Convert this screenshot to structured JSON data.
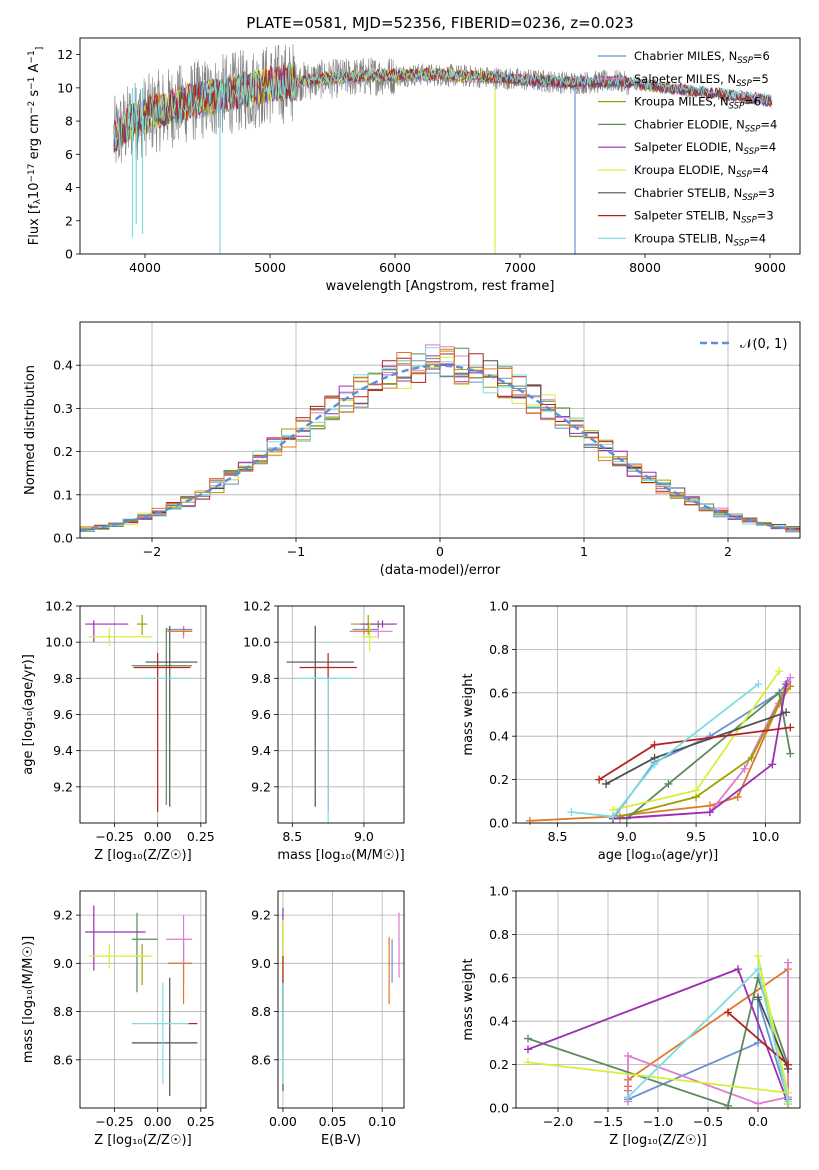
{
  "figure": {
    "title": "PLATE=0581, MJD=52356, FIBERID=0236, z=0.023",
    "models": [
      {
        "name": "Chabrier MILES, N",
        "sub": "SSP",
        "nssp": "=6",
        "color": "#6b8fd4"
      },
      {
        "name": "Salpeter MILES, N",
        "sub": "SSP",
        "nssp": "=5",
        "color": "#e07ad0"
      },
      {
        "name": "Kroupa MILES, N",
        "sub": "SSP",
        "nssp": "=6",
        "color": "#a0a000"
      },
      {
        "name": "Chabrier ELODIE, N",
        "sub": "SSP",
        "nssp": "=4",
        "color": "#5d8a5d"
      },
      {
        "name": "Salpeter ELODIE, N",
        "sub": "SSP",
        "nssp": "=4",
        "color": "#9b30b0"
      },
      {
        "name": "Kroupa ELODIE, N",
        "sub": "SSP",
        "nssp": "=4",
        "color": "#d9ee3a"
      },
      {
        "name": "Chabrier STELIB, N",
        "sub": "SSP",
        "nssp": "=3",
        "color": "#505050"
      },
      {
        "name": "Salpeter STELIB, N",
        "sub": "SSP",
        "nssp": "=3",
        "color": "#b22222"
      },
      {
        "name": "Kroupa STELIB, N",
        "sub": "SSP",
        "nssp": "=4",
        "color": "#7ddde0"
      }
    ],
    "extra_colors": {
      "orange": "#e0782a"
    }
  },
  "chart_data": [
    {
      "id": "spectrum",
      "type": "line",
      "xlabel": "wavelength [Angstrom, rest frame]",
      "ylabel_parts": [
        "Flux [f",
        "λ",
        "10",
        "−17",
        " erg cm",
        "−2",
        " s",
        "−1",
        " A",
        "−1",
        "]"
      ],
      "xlim": [
        3480,
        9240
      ],
      "ylim": [
        0,
        13
      ],
      "xticks": [
        4000,
        5000,
        6000,
        7000,
        8000,
        9000
      ],
      "yticks": [
        0,
        2,
        4,
        6,
        8,
        10,
        12
      ],
      "continuum": [
        [
          3750,
          7.0
        ],
        [
          3900,
          8.0
        ],
        [
          4100,
          8.6
        ],
        [
          4400,
          9.2
        ],
        [
          4700,
          9.7
        ],
        [
          5000,
          10.2
        ],
        [
          5400,
          10.5
        ],
        [
          5800,
          10.7
        ],
        [
          6200,
          10.8
        ],
        [
          6600,
          10.7
        ],
        [
          7000,
          10.5
        ],
        [
          7400,
          10.3
        ],
        [
          7800,
          10.4
        ],
        [
          7880,
          10.2
        ]
      ],
      "data_range": [
        3750,
        7870
      ],
      "model_range": [
        3750,
        9020
      ],
      "drops": [
        [
          4600,
          0
        ],
        [
          6800,
          0
        ],
        [
          7440,
          0
        ],
        [
          3900,
          1.0
        ],
        [
          3980,
          1.2
        ],
        [
          3930,
          1.8
        ]
      ]
    },
    {
      "id": "residuals",
      "type": "histogram",
      "xlabel": "(data-model)/error",
      "ylabel": "Normed distribution",
      "xlim": [
        -2.5,
        2.5
      ],
      "ylim": [
        0,
        0.5
      ],
      "xticks": [
        -2,
        -1,
        0,
        1,
        2
      ],
      "yticks": [
        0.0,
        0.1,
        0.2,
        0.3,
        0.4
      ],
      "bin_width": 0.1,
      "legend": "𝒩(0, 1)",
      "curve_color": "#5b8fd6"
    },
    {
      "id": "age_vs_Z",
      "type": "errorbar",
      "xlabel": "Z [log₁₀(Z/Z☉)]",
      "ylabel": "age  [log₁₀(age/yr)]",
      "xlim": [
        -0.45,
        0.28
      ],
      "ylim": [
        9.0,
        10.2
      ],
      "xticks": [
        -0.25,
        0.0,
        0.25
      ],
      "yticks": [
        9.2,
        9.4,
        9.6,
        9.8,
        10.0,
        10.2
      ],
      "points": [
        {
          "m": 0,
          "x": 0.15,
          "y": 10.07,
          "xe": [
            0.1,
            0.05
          ],
          "ye": [
            0.02,
            0.02
          ]
        },
        {
          "m": 1,
          "x": 0.15,
          "y": 10.06,
          "xe": [
            0.1,
            0.05
          ],
          "ye": [
            0.04,
            0.03
          ]
        },
        {
          "m": 2,
          "x": -0.09,
          "y": 10.1,
          "xe": [
            0.03,
            0.03
          ],
          "ye": [
            0.06,
            0.05
          ]
        },
        {
          "m": 3,
          "x": 0.05,
          "y": 9.87,
          "xe": [
            0.2,
            0.15
          ],
          "ye": [
            0.77,
            0.21
          ]
        },
        {
          "m": 4,
          "x": -0.37,
          "y": 10.1,
          "xe": [
            0.05,
            0.2
          ],
          "ye": [
            0.1,
            0.02
          ]
        },
        {
          "m": 5,
          "x": -0.28,
          "y": 10.03,
          "xe": [
            0.12,
            0.25
          ],
          "ye": [
            0.05,
            0.05
          ]
        },
        {
          "m": 6,
          "x": 0.07,
          "y": 9.89,
          "xe": [
            0.14,
            0.16
          ],
          "ye": [
            0.8,
            0.2
          ]
        },
        {
          "m": 7,
          "x": 0.0,
          "y": 9.86,
          "xe": [
            0.14,
            0.19
          ],
          "ye": [
            0.8,
            0.08
          ]
        },
        {
          "m": 8,
          "x": 0.03,
          "y": 9.8,
          "xe": [
            0.1,
            0.15
          ],
          "ye": [
            0.0,
            0.0
          ]
        },
        {
          "m": 9,
          "x": 0.15,
          "y": 10.06,
          "xe": [
            0.09,
            0.05
          ],
          "ye": [
            0.02,
            0.02
          ]
        }
      ]
    },
    {
      "id": "age_vs_mass",
      "type": "errorbar",
      "xlabel": "mass [log₁₀(M/M☉)]",
      "ylabel": "",
      "xlim": [
        8.4,
        9.28
      ],
      "ylim": [
        9.0,
        10.2
      ],
      "xticks": [
        8.5,
        9.0
      ],
      "yticks": [
        9.2,
        9.4,
        9.6,
        9.8,
        10.0,
        10.2
      ],
      "points": [
        {
          "m": 0,
          "x": 9.0,
          "y": 10.07,
          "xe": [
            0.08,
            0.1
          ],
          "ye": [
            0.02,
            0.02
          ]
        },
        {
          "m": 1,
          "x": 9.1,
          "y": 10.06,
          "xe": [
            0.1,
            0.1
          ],
          "ye": [
            0.04,
            0.03
          ]
        },
        {
          "m": 2,
          "x": 9.03,
          "y": 10.1,
          "xe": [
            0.12,
            0.05
          ],
          "ye": [
            0.06,
            0.05
          ]
        },
        {
          "m": 3,
          "x": 9.1,
          "y": 10.1,
          "xe": [
            0.1,
            0.1
          ],
          "ye": [
            0.02,
            0.02
          ]
        },
        {
          "m": 4,
          "x": 9.13,
          "y": 10.1,
          "xe": [
            0.15,
            0.1
          ],
          "ye": [
            0.02,
            0.02
          ]
        },
        {
          "m": 5,
          "x": 9.04,
          "y": 10.03,
          "xe": [
            0.05,
            0.05
          ],
          "ye": [
            0.08,
            0.08
          ]
        },
        {
          "m": 6,
          "x": 8.66,
          "y": 9.89,
          "xe": [
            0.2,
            0.27
          ],
          "ye": [
            0.8,
            0.2
          ]
        },
        {
          "m": 7,
          "x": 8.75,
          "y": 9.86,
          "xe": [
            0.2,
            0.2
          ],
          "ye": [
            0.8,
            0.08
          ]
        },
        {
          "m": 8,
          "x": 8.75,
          "y": 9.8,
          "xe": [
            0.25,
            0.17
          ],
          "ye": [
            0.8,
            0.0
          ]
        },
        {
          "m": 9,
          "x": 9.0,
          "y": 10.06,
          "xe": [
            0.1,
            0.05
          ],
          "ye": [
            0.02,
            0.02
          ]
        }
      ]
    },
    {
      "id": "weight_vs_age",
      "type": "line",
      "xlabel": "age  [log₁₀(age/yr)]",
      "ylabel": "mass weight",
      "xlim": [
        8.2,
        10.25
      ],
      "ylim": [
        0,
        1.0
      ],
      "xticks": [
        8.5,
        9.0,
        9.5,
        10.0
      ],
      "yticks": [
        0.0,
        0.2,
        0.4,
        0.6,
        0.8,
        1.0
      ],
      "series": [
        {
          "m": 9,
          "x": [
            8.3,
            8.9,
            9.6,
            9.8,
            10.1,
            10.18
          ],
          "y": [
            0.01,
            0.03,
            0.08,
            0.12,
            0.55,
            0.63
          ]
        },
        {
          "m": 0,
          "x": [
            8.9,
            9.2,
            9.6,
            10.1,
            10.16
          ],
          "y": [
            0.02,
            0.28,
            0.4,
            0.6,
            0.65
          ]
        },
        {
          "m": 1,
          "x": [
            8.95,
            9.6,
            9.85,
            10.18
          ],
          "y": [
            0.02,
            0.05,
            0.25,
            0.67
          ]
        },
        {
          "m": 2,
          "x": [
            8.95,
            9.5,
            9.9,
            10.15
          ],
          "y": [
            0.03,
            0.12,
            0.3,
            0.62
          ]
        },
        {
          "m": 3,
          "x": [
            9.0,
            9.3,
            10.1,
            10.18
          ],
          "y": [
            0.02,
            0.18,
            0.6,
            0.32
          ]
        },
        {
          "m": 4,
          "x": [
            8.9,
            9.6,
            10.05,
            10.15
          ],
          "y": [
            0.02,
            0.05,
            0.27,
            0.64
          ]
        },
        {
          "m": 5,
          "x": [
            8.9,
            9.5,
            10.1
          ],
          "y": [
            0.06,
            0.15,
            0.7
          ]
        },
        {
          "m": 6,
          "x": [
            8.85,
            9.2,
            10.15
          ],
          "y": [
            0.18,
            0.3,
            0.51
          ]
        },
        {
          "m": 7,
          "x": [
            8.8,
            9.2,
            10.18
          ],
          "y": [
            0.2,
            0.36,
            0.44
          ]
        },
        {
          "m": 8,
          "x": [
            8.6,
            8.9,
            9.2,
            9.95
          ],
          "y": [
            0.05,
            0.03,
            0.27,
            0.64
          ]
        }
      ]
    },
    {
      "id": "mass_vs_Z",
      "type": "errorbar",
      "xlabel": "Z [log₁₀(Z/Z☉)]",
      "ylabel": "mass [log₁₀(M/M☉)]",
      "xlim": [
        -0.45,
        0.28
      ],
      "ylim": [
        8.4,
        9.3
      ],
      "xticks": [
        -0.25,
        0.0,
        0.25
      ],
      "yticks": [
        8.6,
        8.8,
        9.0,
        9.2
      ],
      "points": [
        {
          "m": 0,
          "x": 0.15,
          "y": 9.0,
          "xe": [
            0.09,
            0.05
          ],
          "ye": [
            0.08,
            0.1
          ]
        },
        {
          "m": 1,
          "x": 0.15,
          "y": 9.1,
          "xe": [
            0.1,
            0.05
          ],
          "ye": [
            0.1,
            0.1
          ]
        },
        {
          "m": 2,
          "x": -0.09,
          "y": 9.03,
          "xe": [
            0.03,
            0.03
          ],
          "ye": [
            0.12,
            0.05
          ]
        },
        {
          "m": 3,
          "x": -0.12,
          "y": 9.1,
          "xe": [
            0.03,
            0.12
          ],
          "ye": [
            0.22,
            0.11
          ]
        },
        {
          "m": 4,
          "x": -0.37,
          "y": 9.13,
          "xe": [
            0.05,
            0.3
          ],
          "ye": [
            0.16,
            0.11
          ]
        },
        {
          "m": 5,
          "x": -0.28,
          "y": 9.03,
          "xe": [
            0.12,
            0.25
          ],
          "ye": [
            0.05,
            0.05
          ]
        },
        {
          "m": 6,
          "x": 0.07,
          "y": 8.67,
          "xe": [
            0.22,
            0.16
          ],
          "ye": [
            0.22,
            0.27
          ]
        },
        {
          "m": 7,
          "x": 0.2,
          "y": 8.75,
          "xe": [
            0.03,
            0.03
          ],
          "ye": [
            0.0,
            0.0
          ]
        },
        {
          "m": 8,
          "x": 0.03,
          "y": 8.75,
          "xe": [
            0.18,
            0.15
          ],
          "ye": [
            0.25,
            0.17
          ]
        },
        {
          "m": 9,
          "x": 0.15,
          "y": 9.0,
          "xe": [
            0.09,
            0.05
          ],
          "ye": [
            0.17,
            0.0
          ]
        }
      ]
    },
    {
      "id": "mass_vs_EBV",
      "type": "errorbar",
      "xlabel": "E(B-V)",
      "ylabel": "",
      "xlim": [
        -0.005,
        0.122
      ],
      "ylim": [
        8.4,
        9.3
      ],
      "xticks": [
        0.0,
        0.05,
        0.1
      ],
      "yticks": [
        8.6,
        8.8,
        9.0,
        9.2
      ],
      "points": [
        {
          "m": 0,
          "x": 0.11,
          "y": 9.0,
          "xe": [
            0,
            0
          ],
          "ye": [
            0.08,
            0.1
          ]
        },
        {
          "m": 1,
          "x": 0.117,
          "y": 9.06,
          "xe": [
            0,
            0
          ],
          "ye": [
            0.12,
            0.15
          ]
        },
        {
          "m": 2,
          "x": 0.0,
          "y": 9.03,
          "xe": [
            0,
            0
          ],
          "ye": [
            0.12,
            0.15
          ]
        },
        {
          "m": 3,
          "x": 0.0,
          "y": 8.83,
          "xe": [
            0,
            0
          ],
          "ye": [
            0.2,
            0.1
          ]
        },
        {
          "m": 4,
          "x": 0.0,
          "y": 9.13,
          "xe": [
            0,
            0
          ],
          "ye": [
            0.1,
            0.1
          ]
        },
        {
          "m": 5,
          "x": 0.0,
          "y": 9.03,
          "xe": [
            0,
            0
          ],
          "ye": [
            0.15,
            0.15
          ]
        },
        {
          "m": 6,
          "x": 0.0,
          "y": 8.67,
          "xe": [
            0,
            0
          ],
          "ye": [
            0.2,
            0.25
          ]
        },
        {
          "m": 7,
          "x": 0.0,
          "y": 8.95,
          "xe": [
            0,
            0
          ],
          "ye": [
            0.15,
            0.08
          ]
        },
        {
          "m": 8,
          "x": 0.0,
          "y": 8.75,
          "xe": [
            0,
            0
          ],
          "ye": [
            0.25,
            0.17
          ]
        },
        {
          "m": 9,
          "x": 0.107,
          "y": 8.98,
          "xe": [
            0,
            0
          ],
          "ye": [
            0.15,
            0.13
          ]
        }
      ]
    },
    {
      "id": "weight_vs_Z",
      "type": "line",
      "xlabel": "Z [log₁₀(Z/Z☉)]",
      "ylabel": "mass weight",
      "xlim": [
        -2.42,
        0.42
      ],
      "ylim": [
        0,
        1.0
      ],
      "xticks": [
        -2.0,
        -1.5,
        -1.0,
        -0.5,
        0.0
      ],
      "yticks": [
        0.0,
        0.2,
        0.4,
        0.6,
        0.8,
        1.0
      ],
      "series": [
        {
          "m": 9,
          "x": [
            -1.3,
            -1.3,
            -1.3,
            -1.3,
            0.3,
            0.3
          ],
          "y": [
            0.05,
            0.08,
            0.1,
            0.13,
            0.64,
            0.02
          ]
        },
        {
          "m": 0,
          "x": [
            -1.3,
            0.0,
            0.0,
            0.3
          ],
          "y": [
            0.04,
            0.3,
            0.5,
            0.04
          ]
        },
        {
          "m": 1,
          "x": [
            -1.3,
            -1.3,
            0.0,
            0.3,
            0.3
          ],
          "y": [
            0.03,
            0.24,
            0.02,
            0.05,
            0.67
          ]
        },
        {
          "m": 3,
          "x": [
            -2.3,
            -0.3,
            0.0,
            0.3
          ],
          "y": [
            0.32,
            0.01,
            0.6,
            0.2
          ]
        },
        {
          "m": 4,
          "x": [
            -2.3,
            -0.2,
            0.3,
            0.3
          ],
          "y": [
            0.27,
            0.64,
            0.02,
            0.02
          ]
        },
        {
          "m": 5,
          "x": [
            -2.3,
            0.3,
            0.0,
            0.3
          ],
          "y": [
            0.21,
            0.07,
            0.7,
            0.02
          ]
        },
        {
          "m": 6,
          "x": [
            0.0,
            0.3
          ],
          "y": [
            0.51,
            0.18
          ]
        },
        {
          "m": 7,
          "x": [
            -0.3,
            0.3
          ],
          "y": [
            0.44,
            0.2
          ]
        },
        {
          "m": 8,
          "x": [
            -1.3,
            0.0,
            0.3
          ],
          "y": [
            0.05,
            0.64,
            0.03
          ]
        }
      ]
    }
  ]
}
